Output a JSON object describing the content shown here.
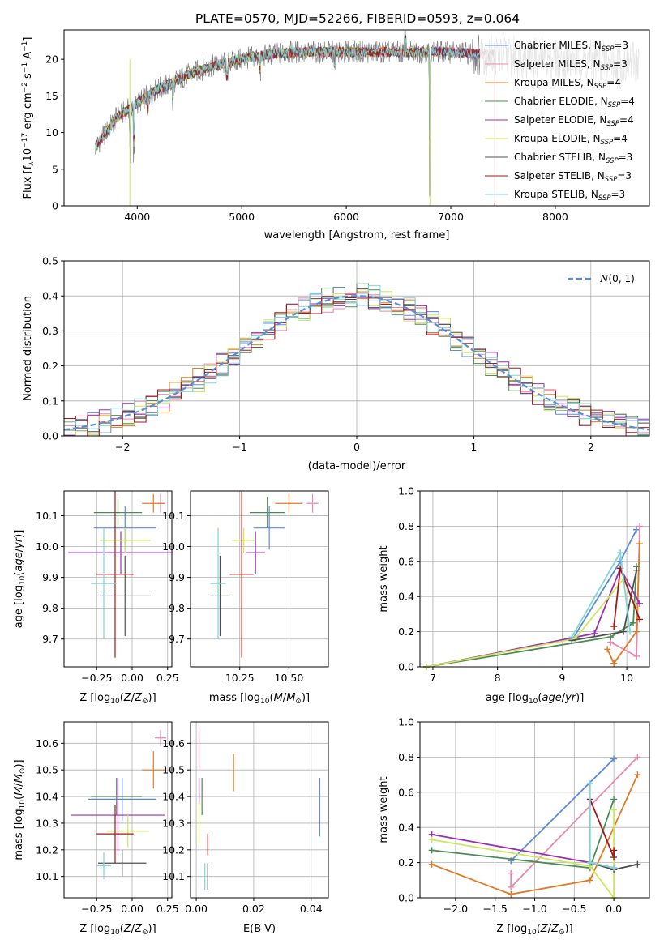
{
  "title": "PLATE=0570, MJD=52266, FIBERID=0593, z=0.064",
  "colors": {
    "chabrier_miles": "#5b8bd6",
    "salpeter_miles": "#e889b0",
    "kroupa_miles": "#e07b25",
    "chabrier_elodie": "#4e8a55",
    "salpeter_elodie": "#9a2fb5",
    "kroupa_elodie": "#cde65a",
    "chabrier_stelib": "#4f4f4f",
    "salpeter_stelib": "#a51818",
    "kroupa_stelib": "#7fd6d6",
    "data": "#808080",
    "normal": "#5b8bd6"
  },
  "legend": [
    {
      "key": "chabrier_miles",
      "text": "Chabrier MILES, N",
      "n": "3"
    },
    {
      "key": "salpeter_miles",
      "text": "Salpeter MILES, N",
      "n": "3"
    },
    {
      "key": "kroupa_miles",
      "text": "Kroupa MILES, N",
      "n": "4"
    },
    {
      "key": "chabrier_elodie",
      "text": "Chabrier ELODIE, N",
      "n": "4"
    },
    {
      "key": "salpeter_elodie",
      "text": "Salpeter ELODIE, N",
      "n": "4"
    },
    {
      "key": "kroupa_elodie",
      "text": "Kroupa ELODIE, N",
      "n": "4"
    },
    {
      "key": "chabrier_stelib",
      "text": "Chabrier STELIB, N",
      "n": "3"
    },
    {
      "key": "salpeter_stelib",
      "text": "Salpeter STELIB, N",
      "n": "3"
    },
    {
      "key": "kroupa_stelib",
      "text": "Kroupa STELIB, N",
      "n": "3"
    }
  ],
  "legend_sub": "SSP",
  "chart_data": [
    {
      "id": "spectrum",
      "type": "line",
      "xlabel": "wavelength [Angstrom, rest frame]",
      "ylabel": "Flux [f_λ 10^-17 erg cm^-2 s^-1 A^-1]",
      "xlim": [
        3300,
        8900
      ],
      "ylim": [
        0,
        24
      ],
      "xticks": [
        "4000",
        "5000",
        "6000",
        "7000",
        "8000"
      ],
      "yticks": [
        "0",
        "5",
        "10",
        "15",
        "20"
      ],
      "continuum": [
        [
          3600,
          8
        ],
        [
          3700,
          10
        ],
        [
          3800,
          12
        ],
        [
          3900,
          13
        ],
        [
          4000,
          14
        ],
        [
          4100,
          15
        ],
        [
          4200,
          16
        ],
        [
          4300,
          16.5
        ],
        [
          4500,
          18
        ],
        [
          4700,
          19
        ],
        [
          5000,
          20
        ],
        [
          5200,
          20.5
        ],
        [
          5500,
          21
        ],
        [
          6000,
          21
        ],
        [
          6500,
          21
        ],
        [
          7000,
          21
        ],
        [
          7500,
          20.5
        ],
        [
          8000,
          20
        ],
        [
          8800,
          19.5
        ]
      ],
      "notches": [
        [
          3934,
          8
        ],
        [
          3969,
          7
        ],
        [
          4102,
          3
        ],
        [
          4340,
          3
        ],
        [
          4861,
          3
        ],
        [
          5175,
          2.5
        ],
        [
          5890,
          2.5
        ],
        [
          6563,
          -3
        ],
        [
          6800,
          20
        ]
      ]
    },
    {
      "id": "residuals",
      "type": "histogram",
      "xlabel": "(data-model)/error",
      "ylabel": "Normed distribution",
      "xlim": [
        -2.5,
        2.5
      ],
      "ylim": [
        0,
        0.5
      ],
      "xticks": [
        "−2",
        "−1",
        "0",
        "1",
        "2"
      ],
      "yticks": [
        "0.0",
        "0.1",
        "0.2",
        "0.3",
        "0.4",
        "0.5"
      ],
      "bin_width": 0.1,
      "legend_label": "N(0,1)",
      "amplitude": 0.4
    },
    {
      "id": "age_vs_Z",
      "type": "scatter",
      "xlabel": "Z [log10(Z/Z_sun)]",
      "ylabel": "age  [log10(age/yr)]",
      "xlim": [
        -0.48,
        0.28
      ],
      "ylim": [
        9.61,
        10.18
      ],
      "xticks": [
        "−0.25",
        "0.00",
        "0.25"
      ],
      "yticks": [
        "9.7",
        "9.8",
        "9.9",
        "10.0",
        "10.1"
      ],
      "points": [
        {
          "key": "chabrier_miles",
          "x": -0.05,
          "y": 10.06,
          "xerr": 0.22,
          "yerr": 0.07
        },
        {
          "key": "salpeter_miles",
          "x": 0.2,
          "y": 10.14,
          "xerr": 0.02,
          "yerr": 0.03
        },
        {
          "key": "kroupa_miles",
          "x": 0.15,
          "y": 10.14,
          "xerr": 0.08,
          "yerr": 0.03
        },
        {
          "key": "chabrier_elodie",
          "x": -0.1,
          "y": 10.11,
          "xerr": 0.17,
          "yerr": 0.05
        },
        {
          "key": "salpeter_elodie",
          "x": -0.08,
          "y": 9.98,
          "xerr": 0.37,
          "yerr": 0.07
        },
        {
          "key": "kroupa_elodie",
          "x": -0.05,
          "y": 10.02,
          "xerr": 0.18,
          "yerr": 0.04
        },
        {
          "key": "chabrier_stelib",
          "x": -0.05,
          "y": 9.84,
          "xerr": 0.18,
          "yerr": 0.13
        },
        {
          "key": "salpeter_stelib",
          "x": -0.12,
          "y": 9.91,
          "xerr": 0.13,
          "yerr": 0.27
        },
        {
          "key": "kroupa_stelib",
          "x": -0.2,
          "y": 9.88,
          "xerr": 0.09,
          "yerr": 0.18
        }
      ]
    },
    {
      "id": "age_vs_mass",
      "type": "scatter",
      "xlabel": "mass [log10(M/M_sun)]",
      "ylabel": "",
      "xlim": [
        10.0,
        10.7
      ],
      "ylim": [
        9.61,
        10.18
      ],
      "xticks": [
        "10.25",
        "10.50"
      ],
      "yticks": [
        "9.7",
        "9.8",
        "9.9",
        "10.0",
        "10.1"
      ],
      "points": [
        {
          "key": "chabrier_miles",
          "x": 10.4,
          "y": 10.06,
          "xerr": 0.08,
          "yerr": 0.07
        },
        {
          "key": "salpeter_miles",
          "x": 10.62,
          "y": 10.14,
          "xerr": 0.03,
          "yerr": 0.03
        },
        {
          "key": "kroupa_miles",
          "x": 10.5,
          "y": 10.14,
          "xerr": 0.07,
          "yerr": 0.03
        },
        {
          "key": "chabrier_elodie",
          "x": 10.39,
          "y": 10.11,
          "xerr": 0.09,
          "yerr": 0.05
        },
        {
          "key": "salpeter_elodie",
          "x": 10.33,
          "y": 9.98,
          "xerr": 0.05,
          "yerr": 0.07
        },
        {
          "key": "kroupa_elodie",
          "x": 10.27,
          "y": 10.02,
          "xerr": 0.06,
          "yerr": 0.04
        },
        {
          "key": "chabrier_stelib",
          "x": 10.15,
          "y": 9.84,
          "xerr": 0.05,
          "yerr": 0.13
        },
        {
          "key": "salpeter_stelib",
          "x": 10.26,
          "y": 9.91,
          "xerr": 0.06,
          "yerr": 0.27
        },
        {
          "key": "kroupa_stelib",
          "x": 10.14,
          "y": 9.88,
          "xerr": 0.04,
          "yerr": 0.18
        }
      ]
    },
    {
      "id": "weight_vs_age",
      "type": "line",
      "xlabel": "age  [log10(age/yr)]",
      "ylabel": "mass weight",
      "xlim": [
        6.8,
        10.35
      ],
      "ylim": [
        0,
        1.0
      ],
      "xticks": [
        "7",
        "8",
        "9",
        "10"
      ],
      "yticks": [
        "0.0",
        "0.2",
        "0.4",
        "0.6",
        "0.8",
        "1.0"
      ],
      "series": [
        {
          "key": "chabrier_miles",
          "pts": [
            [
              9.15,
              0.15
            ],
            [
              9.9,
              0.6
            ],
            [
              10.15,
              0.78
            ]
          ]
        },
        {
          "key": "salpeter_miles",
          "pts": [
            [
              9.75,
              0.14
            ],
            [
              10.15,
              0.06
            ],
            [
              10.2,
              0.8
            ]
          ]
        },
        {
          "key": "kroupa_miles",
          "pts": [
            [
              9.7,
              0.1
            ],
            [
              9.8,
              0.02
            ],
            [
              10.15,
              0.2
            ],
            [
              10.2,
              0.7
            ]
          ]
        },
        {
          "key": "chabrier_elodie",
          "pts": [
            [
              6.9,
              0.0
            ],
            [
              9.75,
              0.17
            ],
            [
              10.1,
              0.25
            ],
            [
              10.15,
              0.57
            ]
          ]
        },
        {
          "key": "salpeter_elodie",
          "pts": [
            [
              6.9,
              0.0
            ],
            [
              9.5,
              0.19
            ],
            [
              9.9,
              0.56
            ],
            [
              10.2,
              0.36
            ]
          ]
        },
        {
          "key": "kroupa_elodie",
          "pts": [
            [
              6.9,
              0.0
            ],
            [
              9.2,
              0.16
            ],
            [
              9.95,
              0.5
            ],
            [
              10.15,
              0.33
            ]
          ]
        },
        {
          "key": "chabrier_stelib",
          "pts": [
            [
              9.15,
              0.15
            ],
            [
              9.95,
              0.2
            ],
            [
              10.15,
              0.55
            ]
          ]
        },
        {
          "key": "salpeter_stelib",
          "pts": [
            [
              9.8,
              0.23
            ],
            [
              9.9,
              0.56
            ],
            [
              10.2,
              0.27
            ]
          ]
        },
        {
          "key": "kroupa_stelib",
          "pts": [
            [
              9.15,
              0.17
            ],
            [
              9.9,
              0.65
            ],
            [
              10.05,
              0.2
            ]
          ]
        }
      ]
    },
    {
      "id": "mass_vs_Z",
      "type": "scatter",
      "xlabel": "Z [log10(Z/Z_sun)]",
      "ylabel": "mass [log10(M/M_sun)]",
      "xlim": [
        -0.48,
        0.28
      ],
      "ylim": [
        10.02,
        10.68
      ],
      "xticks": [
        "−0.25",
        "0.00",
        "0.25"
      ],
      "yticks": [
        "10.1",
        "10.2",
        "10.3",
        "10.4",
        "10.5",
        "10.6"
      ],
      "points": [
        {
          "key": "chabrier_miles",
          "x": -0.07,
          "y": 10.39,
          "xerr": 0.24,
          "yerr": 0.08
        },
        {
          "key": "salpeter_miles",
          "x": 0.2,
          "y": 10.62,
          "xerr": 0.04,
          "yerr": 0.03
        },
        {
          "key": "kroupa_miles",
          "x": 0.15,
          "y": 10.5,
          "xerr": 0.08,
          "yerr": 0.07
        },
        {
          "key": "chabrier_elodie",
          "x": -0.11,
          "y": 10.4,
          "xerr": 0.18,
          "yerr": 0.07
        },
        {
          "key": "salpeter_elodie",
          "x": -0.1,
          "y": 10.33,
          "xerr": 0.33,
          "yerr": 0.14
        },
        {
          "key": "kroupa_elodie",
          "x": -0.03,
          "y": 10.27,
          "xerr": 0.15,
          "yerr": 0.06
        },
        {
          "key": "chabrier_stelib",
          "x": -0.07,
          "y": 10.15,
          "xerr": 0.17,
          "yerr": 0.05
        },
        {
          "key": "salpeter_stelib",
          "x": -0.12,
          "y": 10.26,
          "xerr": 0.13,
          "yerr": 0.11
        },
        {
          "key": "kroupa_stelib",
          "x": -0.2,
          "y": 10.14,
          "xerr": 0.05,
          "yerr": 0.05
        }
      ]
    },
    {
      "id": "mass_vs_ebv",
      "type": "scatter",
      "xlabel": "E(B-V)",
      "ylabel": "",
      "xlim": [
        -0.002,
        0.046
      ],
      "ylim": [
        10.02,
        10.68
      ],
      "xticks": [
        "0.00",
        "0.02",
        "0.04"
      ],
      "yticks": [
        "10.1",
        "10.2",
        "10.3",
        "10.4",
        "10.5",
        "10.6"
      ],
      "points": [
        {
          "key": "chabrier_miles",
          "x": 0.043,
          "y": 10.36,
          "xerr": 0,
          "yerr": 0.11
        },
        {
          "key": "salpeter_miles",
          "x": 0.001,
          "y": 10.58,
          "xerr": 0,
          "yerr": 0.08
        },
        {
          "key": "kroupa_miles",
          "x": 0.013,
          "y": 10.49,
          "xerr": 0,
          "yerr": 0.07
        },
        {
          "key": "chabrier_elodie",
          "x": 0.002,
          "y": 10.4,
          "xerr": 0,
          "yerr": 0.07
        },
        {
          "key": "salpeter_elodie",
          "x": 0.001,
          "y": 10.42,
          "xerr": 0,
          "yerr": 0.05
        },
        {
          "key": "kroupa_elodie",
          "x": 0.001,
          "y": 10.3,
          "xerr": 0,
          "yerr": 0.08
        },
        {
          "key": "chabrier_stelib",
          "x": 0.004,
          "y": 10.1,
          "xerr": 0,
          "yerr": 0.05
        },
        {
          "key": "salpeter_stelib",
          "x": 0.004,
          "y": 10.22,
          "xerr": 0,
          "yerr": 0.04
        },
        {
          "key": "kroupa_stelib",
          "x": 0.003,
          "y": 10.1,
          "xerr": 0,
          "yerr": 0.05
        }
      ]
    },
    {
      "id": "weight_vs_Z",
      "type": "line",
      "xlabel": "Z [log10(Z/Z_sun)]",
      "ylabel": "mass weight",
      "xlim": [
        -2.45,
        0.45
      ],
      "ylim": [
        0,
        1.0
      ],
      "xticks": [
        "−2.0",
        "−1.5",
        "−1.0",
        "−0.5",
        "0.0"
      ],
      "yticks": [
        "0.0",
        "0.2",
        "0.4",
        "0.6",
        "0.8",
        "1.0"
      ],
      "series": [
        {
          "key": "chabrier_miles",
          "pts": [
            [
              -1.3,
              0.21
            ],
            [
              0.0,
              0.79
            ]
          ]
        },
        {
          "key": "salpeter_miles",
          "pts": [
            [
              -1.3,
              0.14
            ],
            [
              -1.3,
              0.06
            ],
            [
              0.3,
              0.8
            ]
          ]
        },
        {
          "key": "kroupa_miles",
          "pts": [
            [
              -2.3,
              0.19
            ],
            [
              -1.3,
              0.02
            ],
            [
              -0.3,
              0.1
            ],
            [
              0.3,
              0.7
            ]
          ]
        },
        {
          "key": "chabrier_elodie",
          "pts": [
            [
              -2.3,
              0.27
            ],
            [
              -0.3,
              0.17
            ],
            [
              0.0,
              0.56
            ]
          ]
        },
        {
          "key": "salpeter_elodie",
          "pts": [
            [
              -2.3,
              0.36
            ],
            [
              -0.3,
              0.2
            ],
            [
              0.0,
              0.17
            ]
          ]
        },
        {
          "key": "kroupa_elodie",
          "pts": [
            [
              -2.3,
              0.33
            ],
            [
              -0.3,
              0.18
            ],
            [
              0.0,
              0.0
            ],
            [
              0.0,
              0.5
            ]
          ]
        },
        {
          "key": "chabrier_stelib",
          "pts": [
            [
              -0.3,
              0.2
            ],
            [
              0.0,
              0.16
            ],
            [
              0.3,
              0.19
            ]
          ]
        },
        {
          "key": "salpeter_stelib",
          "pts": [
            [
              -0.3,
              0.56
            ],
            [
              0.0,
              0.23
            ],
            [
              0.0,
              0.27
            ]
          ]
        },
        {
          "key": "kroupa_stelib",
          "pts": [
            [
              -0.3,
              0.65
            ],
            [
              -0.3,
              0.2
            ],
            [
              0.0,
              0.17
            ]
          ]
        }
      ]
    }
  ]
}
